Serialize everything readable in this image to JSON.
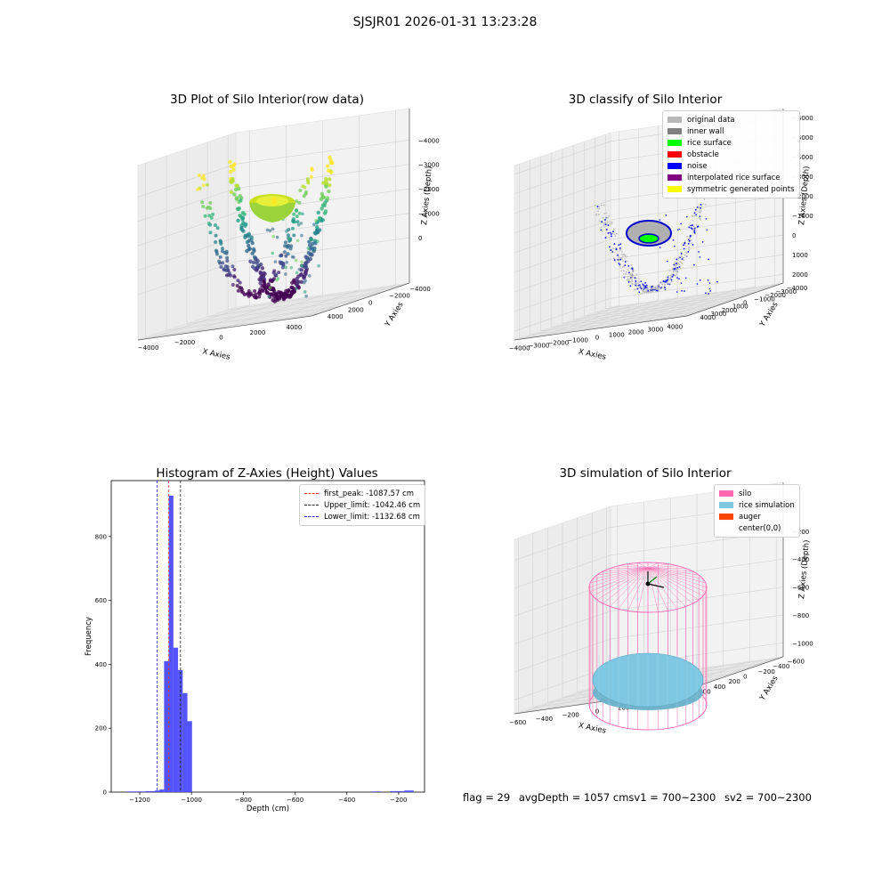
{
  "suptitle": "SJSJR01 2026-01-31 13:23:28",
  "colors": {
    "histogram_bar": "#4a4aff",
    "first_peak_line": "#ff3333",
    "upper_limit_line": "#222222",
    "lower_limit_line": "#2222cc",
    "silo_wire": "#ff69b4",
    "rice_simulation": "#7ec8e3",
    "auger": "#ff4500"
  },
  "panels": {
    "raw": {
      "title": "3D Plot of Silo Interior(row data)",
      "x_axis_label": "X Axies",
      "y_axis_label": "Y Axies",
      "z_axis_label": "Z Axies (Depth)",
      "x_ticks": [
        "−4000",
        "−2000",
        "0",
        "2000",
        "4000"
      ],
      "y_ticks": [
        "−4000",
        "−2000",
        "0",
        "2000",
        "4000"
      ],
      "z_ticks": [
        "0",
        "−1000",
        "−2000",
        "−3000",
        "−4000"
      ]
    },
    "classify": {
      "title": "3D classify of Silo Interior",
      "x_axis_label": "X Axies",
      "y_axis_label": "Y Axies",
      "z_axis_label": "Z Axies (Depth)",
      "x_ticks": [
        "−4000",
        "−3000",
        "−2000",
        "−1000",
        "0",
        "1000",
        "2000",
        "3000",
        "4000"
      ],
      "y_ticks": [
        "−4000",
        "−3000",
        "−2000",
        "−1000",
        "0",
        "1000",
        "2000",
        "3000",
        "4000"
      ],
      "z_ticks": [
        "2000",
        "1000",
        "0",
        "−1000",
        "−2000",
        "−3000",
        "−4000",
        "−5000",
        "−6000"
      ],
      "legend": [
        {
          "label": "original data",
          "color": "#b8b8b8"
        },
        {
          "label": "inner wall",
          "color": "#808080"
        },
        {
          "label": "rice surface",
          "color": "#00ff00"
        },
        {
          "label": "obstacle",
          "color": "#ff0000"
        },
        {
          "label": "noise",
          "color": "#0000ff"
        },
        {
          "label": "interpolated rice surface",
          "color": "#800080"
        },
        {
          "label": "symmetric generated points",
          "color": "#ffff00"
        }
      ]
    },
    "histogram": {
      "title": "Histogram of Z-Axies (Height) Values",
      "x_axis_label": "Depth (cm)",
      "y_axis_label": "Frequency",
      "legend": [
        {
          "label": "first_peak: -1087.57 cm",
          "color": "#ff3333"
        },
        {
          "label": "Upper_limit: -1042.46 cm",
          "color": "#222222"
        },
        {
          "label": "Lower_limit: -1132.68 cm",
          "color": "#2222cc"
        }
      ]
    },
    "simulation": {
      "title": "3D simulation of Silo Interior",
      "x_axis_label": "X Axies",
      "y_axis_label": "Y Axies",
      "z_axis_label": "Z Axies (Depth)",
      "x_ticks": [
        "−600",
        "−400",
        "−200",
        "0",
        "200",
        "400",
        "600"
      ],
      "y_ticks": [
        "−600",
        "−400",
        "−200",
        "0",
        "200",
        "400",
        "600"
      ],
      "z_ticks": [
        "0",
        "−200",
        "−400",
        "−600",
        "−800",
        "−1000"
      ],
      "legend": [
        {
          "label": "silo",
          "color": "#ff69b4"
        },
        {
          "label": "rice simulation",
          "color": "#7ec8e3"
        },
        {
          "label": "auger",
          "color": "#ff4500"
        },
        {
          "label": "center(0,0)",
          "color": "#ffffff"
        }
      ]
    }
  },
  "status": {
    "flag": "flag = 29",
    "avg_depth": "avgDepth = 1057 cmsv1 = 700~2300",
    "sv2": "sv2 = 700~2300"
  },
  "chart_data": [
    {
      "type": "bar",
      "title": "Histogram of Z-Axies (Height) Values",
      "xlabel": "Depth (cm)",
      "ylabel": "Frequency",
      "xlim": [
        -1310,
        -100
      ],
      "ylim": [
        0,
        975
      ],
      "x_ticks": [
        -1200,
        -1000,
        -800,
        -600,
        -400,
        -200
      ],
      "y_ticks": [
        0,
        200,
        400,
        600,
        800
      ],
      "bin_width": 18,
      "bins": [
        {
          "x": -1250,
          "value": 2
        },
        {
          "x": -1232,
          "value": 2
        },
        {
          "x": -1214,
          "value": 2
        },
        {
          "x": -1196,
          "value": 2
        },
        {
          "x": -1178,
          "value": 3
        },
        {
          "x": -1160,
          "value": 3
        },
        {
          "x": -1142,
          "value": 5
        },
        {
          "x": -1124,
          "value": 8
        },
        {
          "x": -1106,
          "value": 410
        },
        {
          "x": -1088,
          "value": 928
        },
        {
          "x": -1070,
          "value": 452
        },
        {
          "x": -1052,
          "value": 382
        },
        {
          "x": -1034,
          "value": 310
        },
        {
          "x": -1016,
          "value": 222
        },
        {
          "x": -304,
          "value": 2
        },
        {
          "x": -286,
          "value": 2
        },
        {
          "x": -232,
          "value": 3
        },
        {
          "x": -214,
          "value": 3
        },
        {
          "x": -196,
          "value": 3
        },
        {
          "x": -178,
          "value": 5
        },
        {
          "x": -160,
          "value": 5
        }
      ],
      "vlines": [
        {
          "name": "first_peak: -1087.57 cm",
          "x": -1087.57
        },
        {
          "name": "Upper_limit: -1042.46 cm",
          "x": -1042.46
        },
        {
          "name": "Lower_limit: -1132.68 cm",
          "x": -1132.68
        }
      ],
      "legend_position": "upper right"
    },
    {
      "type": "scatter",
      "title": "3D Plot of Silo Interior(row data)",
      "xlim": [
        -4500,
        4500
      ],
      "ylim": [
        -4500,
        4500
      ],
      "zlim": [
        -4500,
        0
      ],
      "colormap": "viridis"
    },
    {
      "type": "scatter",
      "title": "3D classify of Silo Interior",
      "xlim": [
        -4000,
        4000
      ],
      "ylim": [
        -4000,
        4000
      ],
      "zlim": [
        -6500,
        2000
      ],
      "legend_position": "upper right"
    },
    {
      "type": "scatter",
      "title": "3D simulation of Silo Interior",
      "xlim": [
        -650,
        650
      ],
      "ylim": [
        -650,
        650
      ],
      "zlim": [
        -1150,
        100
      ],
      "legend_position": "upper right"
    }
  ]
}
